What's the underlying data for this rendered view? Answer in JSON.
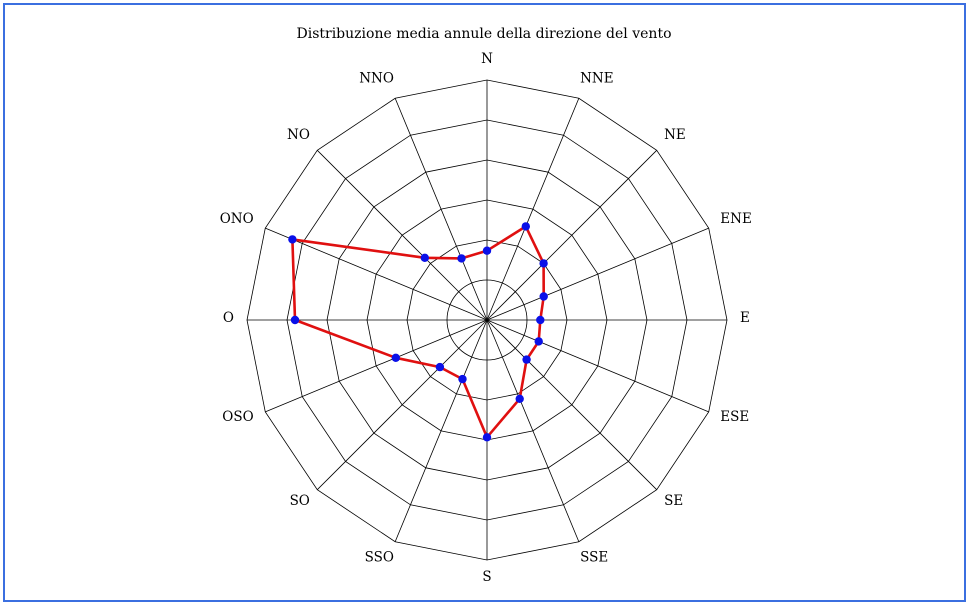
{
  "chart_data": {
    "type": "radar",
    "title": "Distribuzione media annule della direzione del vento",
    "categories": [
      "N",
      "NNE",
      "NE",
      "ENE",
      "E",
      "ESE",
      "SE",
      "SSE",
      "S",
      "SSO",
      "SO",
      "OSO",
      "O",
      "ONO",
      "NO",
      "NNO"
    ],
    "series": [
      {
        "values": [
          2.6,
          3.8,
          3.0,
          2.3,
          2.0,
          2.1,
          2.1,
          3.2,
          4.4,
          2.4,
          2.5,
          3.7,
          7.2,
          7.9,
          3.3,
          2.5
        ],
        "color": "#e01010",
        "marker_color": "#0a10e8"
      }
    ],
    "rlim": [
      0,
      9
    ],
    "ring_count": 6,
    "grid": true,
    "grid_shape": "polygon"
  }
}
